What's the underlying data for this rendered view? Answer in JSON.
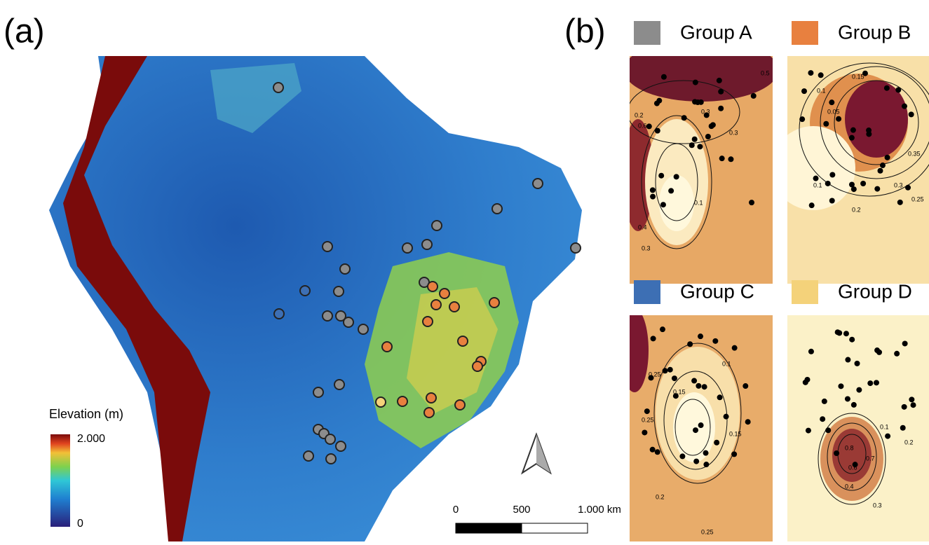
{
  "panel_a": {
    "label": "(a)",
    "legend": {
      "title": "Elevation (m)",
      "max_label": "2.000",
      "min_label": "0"
    },
    "scale_bar": {
      "labels": [
        "0",
        "500",
        "1.000 km"
      ]
    }
  },
  "panel_b": {
    "label": "(b)",
    "groups": [
      {
        "name": "Group A",
        "color": "#8c8c8c",
        "contour_labels": [
          "0.3",
          "0.5",
          "0.3",
          "0.1",
          "0.4",
          "0.3",
          "0.6",
          "0.2"
        ]
      },
      {
        "name": "Group B",
        "color": "#e8803f",
        "contour_labels": [
          "0.1",
          "0.15",
          "0.05",
          "0.3",
          "0.25",
          "0.35",
          "0.1",
          "0.2"
        ]
      },
      {
        "name": "Group C",
        "color": "#3d6fb4",
        "contour_labels": [
          "0.25",
          "0.1",
          "0.15",
          "0.15",
          "0.2",
          "0.25",
          "0.25"
        ]
      },
      {
        "name": "Group D",
        "color": "#f4d27a",
        "contour_labels": [
          "0.1",
          "0.2",
          "0.8",
          "0.6",
          "0.4",
          "0.3",
          "0.7"
        ]
      }
    ]
  }
}
